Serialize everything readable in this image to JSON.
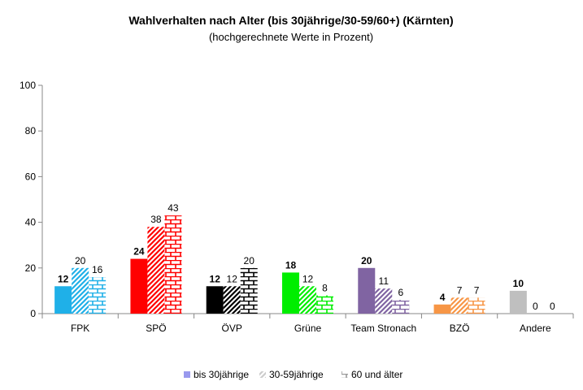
{
  "chart_data": {
    "type": "bar",
    "title": "Wahlverhalten nach Alter (bis 30jährige/30-59/60+) (Kärnten)",
    "subtitle": "(hochgerechnete Werte in Prozent)",
    "categories": [
      "FPK",
      "SPÖ",
      "ÖVP",
      "Grüne",
      "Team Stronach",
      "BZÖ",
      "Andere"
    ],
    "category_colors": [
      "#1fb0e8",
      "#ff0000",
      "#000000",
      "#00ee00",
      "#8064a2",
      "#f79646",
      "#bfbfbf"
    ],
    "series": [
      {
        "name": "bis 30jährige",
        "pattern": "solid",
        "values": [
          12,
          24,
          12,
          18,
          20,
          4,
          10
        ]
      },
      {
        "name": "30-59jährige",
        "pattern": "diagonal",
        "values": [
          20,
          38,
          12,
          12,
          11,
          7,
          0
        ]
      },
      {
        "name": "60 und älter",
        "pattern": "brick",
        "values": [
          16,
          43,
          20,
          8,
          6,
          7,
          0
        ]
      }
    ],
    "ylim": [
      0,
      100
    ],
    "yticks": [
      0,
      20,
      40,
      60,
      80,
      100
    ],
    "legend_position": "bottom",
    "legend_colors": [
      "#9999ee",
      "#cccccc",
      "#999999"
    ],
    "grid": false
  }
}
